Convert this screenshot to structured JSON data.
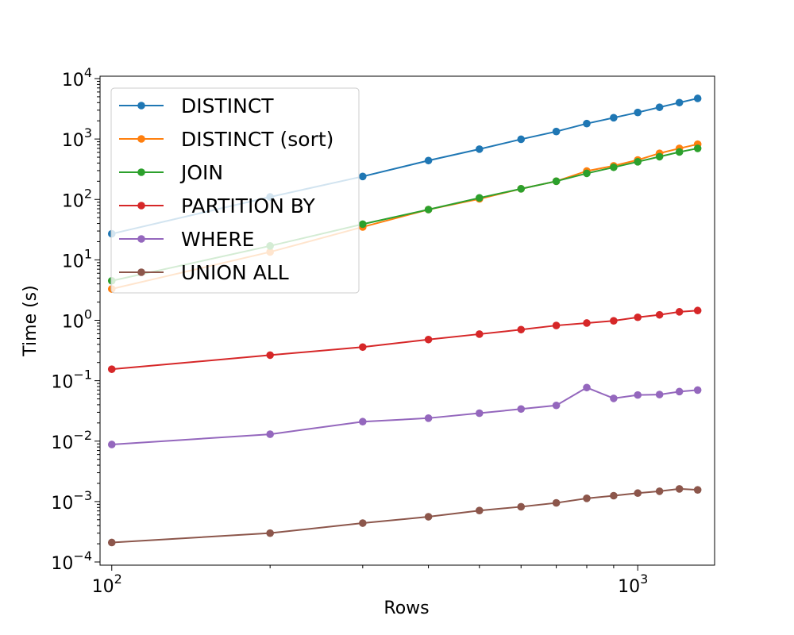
{
  "chart_data": {
    "type": "line",
    "title": "",
    "xlabel": "Rows",
    "ylabel": "Time (s)",
    "xscale": "log",
    "yscale": "log",
    "xlim": [
      95,
      1400
    ],
    "ylim": [
      0.0001,
      10000
    ],
    "x_ticks": [
      {
        "value": 100,
        "base": "10",
        "exp": "2"
      },
      {
        "value": 1000,
        "base": "10",
        "exp": "3"
      }
    ],
    "y_ticks": [
      {
        "value": 0.0001,
        "base": "10",
        "exp": "−4"
      },
      {
        "value": 0.001,
        "base": "10",
        "exp": "−3"
      },
      {
        "value": 0.01,
        "base": "10",
        "exp": "−2"
      },
      {
        "value": 0.1,
        "base": "10",
        "exp": "−1"
      },
      {
        "value": 1,
        "base": "10",
        "exp": "0"
      },
      {
        "value": 10,
        "base": "10",
        "exp": "1"
      },
      {
        "value": 100,
        "base": "10",
        "exp": "2"
      },
      {
        "value": 1000,
        "base": "10",
        "exp": "3"
      },
      {
        "value": 10000,
        "base": "10",
        "exp": "4"
      }
    ],
    "grid": false,
    "legend_position": "top-left",
    "x": [
      100,
      200,
      300,
      400,
      500,
      600,
      700,
      800,
      900,
      1000,
      1100,
      1200,
      1300
    ],
    "series": [
      {
        "name": "DISTINCT",
        "color": "#1f77b4",
        "values": [
          27,
          110,
          240,
          440,
          680,
          990,
          1330,
          1800,
          2250,
          2750,
          3350,
          4000,
          4700
        ]
      },
      {
        "name": "DISTINCT (sort)",
        "color": "#ff7f0e",
        "values": [
          3.3,
          13.5,
          35,
          68,
          102,
          150,
          200,
          295,
          360,
          450,
          580,
          700,
          820
        ]
      },
      {
        "name": "JOIN",
        "color": "#2ca02c",
        "values": [
          4.5,
          17,
          39,
          68,
          106,
          150,
          200,
          270,
          340,
          420,
          510,
          610,
          700
        ]
      },
      {
        "name": "PARTITION BY",
        "color": "#d62728",
        "values": [
          0.155,
          0.265,
          0.36,
          0.48,
          0.59,
          0.7,
          0.82,
          0.9,
          0.98,
          1.12,
          1.23,
          1.38,
          1.45
        ]
      },
      {
        "name": "WHERE",
        "color": "#9467bd",
        "values": [
          0.0088,
          0.013,
          0.021,
          0.024,
          0.029,
          0.034,
          0.039,
          0.077,
          0.051,
          0.058,
          0.059,
          0.066,
          0.07
        ]
      },
      {
        "name": "UNION ALL",
        "color": "#8c564b",
        "values": [
          0.00021,
          0.0003,
          0.00044,
          0.00056,
          0.00071,
          0.00082,
          0.00095,
          0.00113,
          0.00125,
          0.00138,
          0.00148,
          0.00162,
          0.00156
        ]
      }
    ]
  }
}
